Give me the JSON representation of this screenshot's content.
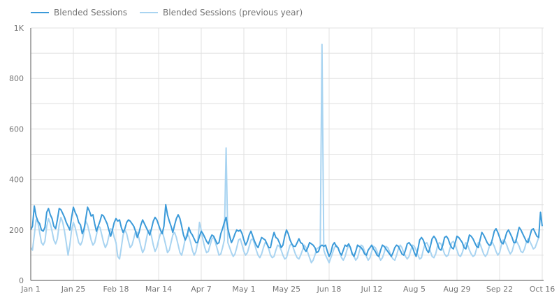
{
  "legend": {
    "series_1_label": "Blended Sessions",
    "series_2_label": "Blended Sessions (previous year)"
  },
  "colors": {
    "series_1": "#3b9ad9",
    "series_2": "#a9d4f1",
    "grid": "#e0e0e0",
    "axis": "#757575"
  },
  "chart_data": {
    "type": "line",
    "title": "",
    "xlabel": "",
    "ylabel": "",
    "ylim": [
      0,
      1000
    ],
    "grid": true,
    "legend_position": "top-left",
    "y_ticks": [
      {
        "value": 0,
        "label": "0"
      },
      {
        "value": 200,
        "label": "200"
      },
      {
        "value": 400,
        "label": "400"
      },
      {
        "value": 600,
        "label": "600"
      },
      {
        "value": 800,
        "label": "800"
      },
      {
        "value": 1000,
        "label": "1K"
      }
    ],
    "y_gridlines": [
      0,
      100,
      200,
      300,
      400,
      500,
      600,
      700,
      800,
      900,
      1000
    ],
    "x_ticks": [
      {
        "day": 0,
        "label": "Jan 1"
      },
      {
        "day": 24,
        "label": "Jan 25"
      },
      {
        "day": 48,
        "label": "Feb 18"
      },
      {
        "day": 72,
        "label": "Mar 14"
      },
      {
        "day": 96,
        "label": "Apr 7"
      },
      {
        "day": 120,
        "label": "May 1"
      },
      {
        "day": 144,
        "label": "May 25"
      },
      {
        "day": 168,
        "label": "Jun 18"
      },
      {
        "day": 192,
        "label": "Jul 12"
      },
      {
        "day": 216,
        "label": "Aug 5"
      },
      {
        "day": 240,
        "label": "Aug 29"
      },
      {
        "day": 264,
        "label": "Sep 22"
      },
      {
        "day": 288,
        "label": "Oct 16"
      }
    ],
    "x_start": "Jan 1",
    "x_interval": "daily",
    "series": [
      {
        "name": "Blended Sessions",
        "values": [
          200,
          215,
          295,
          255,
          235,
          225,
          200,
          195,
          210,
          270,
          285,
          260,
          245,
          215,
          205,
          240,
          285,
          280,
          265,
          250,
          230,
          215,
          200,
          250,
          290,
          270,
          255,
          230,
          220,
          185,
          205,
          245,
          290,
          275,
          255,
          260,
          225,
          195,
          215,
          235,
          260,
          255,
          240,
          225,
          200,
          175,
          200,
          230,
          245,
          235,
          240,
          210,
          190,
          205,
          230,
          240,
          235,
          225,
          215,
          195,
          170,
          190,
          220,
          240,
          225,
          210,
          195,
          180,
          205,
          235,
          250,
          240,
          220,
          200,
          185,
          215,
          300,
          260,
          235,
          215,
          190,
          220,
          245,
          260,
          245,
          215,
          180,
          160,
          175,
          210,
          190,
          180,
          165,
          150,
          150,
          175,
          195,
          185,
          170,
          155,
          145,
          165,
          180,
          175,
          160,
          145,
          150,
          185,
          205,
          230,
          250,
          205,
          175,
          150,
          165,
          185,
          200,
          195,
          200,
          185,
          160,
          140,
          155,
          180,
          195,
          175,
          155,
          140,
          130,
          150,
          170,
          165,
          160,
          145,
          130,
          130,
          165,
          190,
          170,
          165,
          150,
          130,
          140,
          175,
          200,
          185,
          160,
          145,
          135,
          135,
          150,
          165,
          150,
          145,
          125,
          115,
          130,
          150,
          145,
          140,
          130,
          110,
          115,
          135,
          140,
          135,
          140,
          115,
          95,
          110,
          140,
          150,
          135,
          130,
          110,
          100,
          120,
          140,
          135,
          145,
          130,
          105,
          95,
          115,
          140,
          135,
          130,
          120,
          105,
          100,
          120,
          130,
          140,
          125,
          115,
          100,
          95,
          120,
          140,
          135,
          125,
          115,
          105,
          95,
          110,
          130,
          140,
          135,
          120,
          105,
          100,
          120,
          145,
          150,
          140,
          130,
          110,
          95,
          125,
          160,
          170,
          160,
          140,
          120,
          110,
          135,
          165,
          175,
          165,
          145,
          125,
          120,
          140,
          170,
          175,
          165,
          145,
          130,
          125,
          150,
          175,
          170,
          160,
          150,
          130,
          125,
          150,
          180,
          175,
          165,
          150,
          135,
          130,
          160,
          190,
          180,
          165,
          150,
          140,
          140,
          165,
          195,
          205,
          190,
          170,
          150,
          145,
          165,
          190,
          200,
          185,
          170,
          150,
          150,
          180,
          210,
          200,
          185,
          170,
          155,
          150,
          175,
          200,
          205,
          190,
          175,
          170,
          270,
          215
        ]
      },
      {
        "name": "Blended Sessions (previous year)",
        "values": [
          130,
          120,
          180,
          240,
          230,
          190,
          150,
          140,
          155,
          215,
          245,
          225,
          195,
          160,
          145,
          165,
          220,
          250,
          230,
          195,
          150,
          100,
          140,
          200,
          230,
          210,
          180,
          150,
          140,
          155,
          195,
          235,
          220,
          190,
          160,
          140,
          150,
          180,
          215,
          210,
          180,
          150,
          130,
          145,
          175,
          205,
          200,
          170,
          150,
          95,
          85,
          130,
          180,
          200,
          185,
          155,
          130,
          140,
          165,
          195,
          190,
          165,
          135,
          110,
          125,
          160,
          195,
          200,
          175,
          140,
          115,
          130,
          160,
          185,
          195,
          170,
          140,
          110,
          120,
          150,
          180,
          190,
          170,
          140,
          110,
          100,
          130,
          165,
          185,
          175,
          150,
          120,
          100,
          115,
          150,
          230,
          200,
          160,
          130,
          110,
          115,
          140,
          165,
          170,
          150,
          125,
          100,
          105,
          130,
          160,
          525,
          150,
          130,
          110,
          95,
          105,
          130,
          160,
          165,
          140,
          115,
          100,
          110,
          135,
          160,
          165,
          145,
          120,
          100,
          90,
          105,
          130,
          150,
          145,
          125,
          100,
          90,
          95,
          120,
          140,
          135,
          120,
          100,
          85,
          90,
          115,
          140,
          145,
          125,
          105,
          90,
          85,
          100,
          120,
          140,
          130,
          110,
          90,
          70,
          80,
          100,
          125,
          130,
          135,
          935,
          120,
          100,
          85,
          70,
          90,
          110,
          130,
          140,
          130,
          110,
          90,
          80,
          95,
          120,
          140,
          130,
          110,
          95,
          80,
          90,
          115,
          140,
          135,
          115,
          95,
          80,
          90,
          115,
          135,
          130,
          115,
          95,
          80,
          90,
          110,
          135,
          130,
          115,
          95,
          85,
          80,
          100,
          125,
          140,
          130,
          110,
          95,
          85,
          95,
          120,
          140,
          135,
          120,
          100,
          85,
          90,
          120,
          145,
          150,
          135,
          115,
          95,
          90,
          105,
          135,
          150,
          145,
          125,
          105,
          95,
          100,
          125,
          150,
          155,
          140,
          120,
          100,
          95,
          110,
          135,
          150,
          140,
          120,
          105,
          95,
          100,
          125,
          150,
          145,
          125,
          105,
          95,
          105,
          130,
          150,
          150,
          135,
          115,
          100,
          110,
          140,
          160,
          155,
          140,
          120,
          105,
          115,
          140,
          160,
          150,
          135,
          115,
          110,
          125,
          150,
          165,
          155,
          140,
          125,
          130,
          150,
          170
        ]
      }
    ]
  }
}
